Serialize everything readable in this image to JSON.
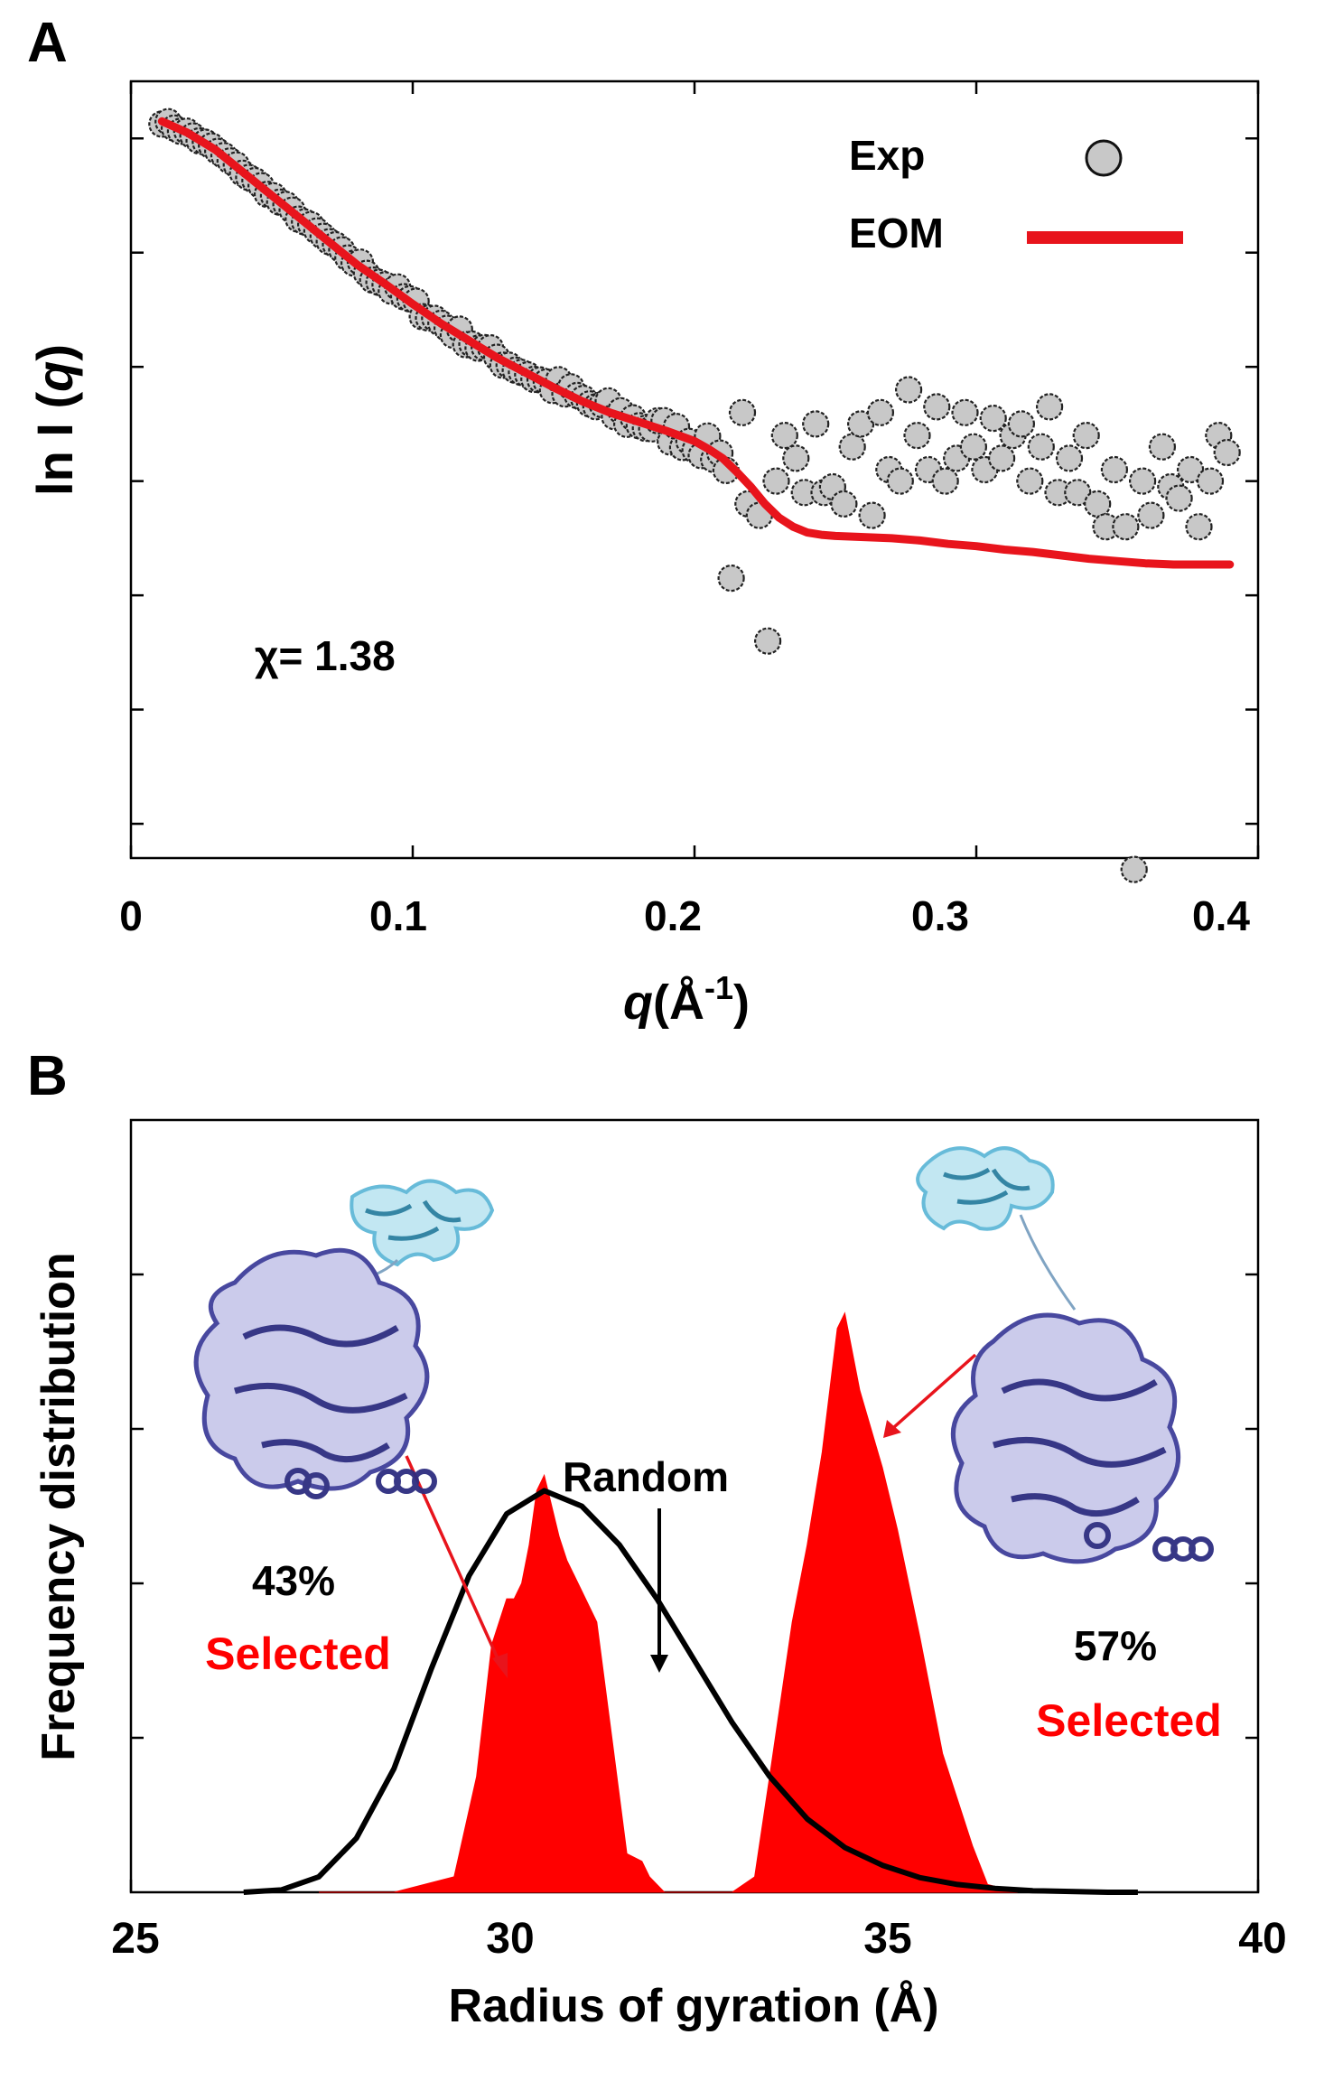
{
  "chart_data": [
    {
      "panel": "A",
      "type": "scatter",
      "xlabel_italic": "q",
      "xlabel_rest": "(Å",
      "xlabel_sup": "-1",
      "xlabel_close": ")",
      "ylabel_prefix": "ln I (",
      "ylabel_italic": "q",
      "ylabel_suffix": ")",
      "xlim": [
        0,
        0.4
      ],
      "ylim": [
        -6.3,
        0.5
      ],
      "xticks": [
        0,
        0.1,
        0.2,
        0.3,
        0.4
      ],
      "xtick_labels": [
        "0",
        "0.1",
        "0.2",
        "0.3",
        "0.4"
      ],
      "yticks": [
        -6,
        -5,
        -4,
        -3,
        -2,
        -1,
        0
      ],
      "annotation": "χ= 1.38",
      "legend": [
        {
          "label": "Exp",
          "marker": "circle",
          "color": "#c8c8c8"
        },
        {
          "label": "EOM",
          "marker": "line",
          "color": "#e8141c"
        }
      ],
      "series": [
        {
          "name": "Exp",
          "type": "scatter",
          "note": "noisy experimental points following the EOM curve, with increasing scatter at q > 0.2",
          "points": [
            [
              0.213,
              -3.85
            ],
            [
              0.217,
              -2.4
            ],
            [
              0.219,
              -3.2
            ],
            [
              0.223,
              -3.3
            ],
            [
              0.226,
              -4.4
            ],
            [
              0.229,
              -3.0
            ],
            [
              0.232,
              -2.6
            ],
            [
              0.236,
              -2.8
            ],
            [
              0.239,
              -3.1
            ],
            [
              0.243,
              -2.5
            ],
            [
              0.246,
              -3.1
            ],
            [
              0.249,
              -3.05
            ],
            [
              0.253,
              -3.2
            ],
            [
              0.256,
              -2.7
            ],
            [
              0.259,
              -2.5
            ],
            [
              0.263,
              -3.3
            ],
            [
              0.266,
              -2.4
            ],
            [
              0.269,
              -2.9
            ],
            [
              0.273,
              -3.0
            ],
            [
              0.276,
              -2.2
            ],
            [
              0.279,
              -2.6
            ],
            [
              0.283,
              -2.9
            ],
            [
              0.286,
              -2.35
            ],
            [
              0.289,
              -3.0
            ],
            [
              0.293,
              -2.8
            ],
            [
              0.296,
              -2.4
            ],
            [
              0.299,
              -2.7
            ],
            [
              0.303,
              -2.9
            ],
            [
              0.306,
              -2.45
            ],
            [
              0.309,
              -2.8
            ],
            [
              0.313,
              -2.6
            ],
            [
              0.316,
              -2.5
            ],
            [
              0.319,
              -3.0
            ],
            [
              0.323,
              -2.7
            ],
            [
              0.326,
              -2.35
            ],
            [
              0.329,
              -3.1
            ],
            [
              0.333,
              -2.8
            ],
            [
              0.336,
              -3.1
            ],
            [
              0.339,
              -2.6
            ],
            [
              0.343,
              -3.2
            ],
            [
              0.346,
              -3.4
            ],
            [
              0.349,
              -2.9
            ],
            [
              0.353,
              -3.4
            ],
            [
              0.356,
              -6.4
            ],
            [
              0.359,
              -3.0
            ],
            [
              0.362,
              -3.3
            ],
            [
              0.366,
              -2.7
            ],
            [
              0.369,
              -3.05
            ],
            [
              0.372,
              -3.15
            ],
            [
              0.376,
              -2.9
            ],
            [
              0.379,
              -3.4
            ],
            [
              0.383,
              -3.0
            ],
            [
              0.386,
              -2.6
            ],
            [
              0.389,
              -2.75
            ]
          ]
        },
        {
          "name": "EOM",
          "type": "line",
          "x": [
            0.011,
            0.02,
            0.03,
            0.04,
            0.05,
            0.06,
            0.07,
            0.08,
            0.09,
            0.1,
            0.11,
            0.12,
            0.13,
            0.14,
            0.15,
            0.16,
            0.17,
            0.18,
            0.19,
            0.2,
            0.205,
            0.21,
            0.215,
            0.22,
            0.225,
            0.23,
            0.235,
            0.24,
            0.245,
            0.25,
            0.26,
            0.27,
            0.28,
            0.29,
            0.3,
            0.31,
            0.32,
            0.33,
            0.34,
            0.35,
            0.36,
            0.37,
            0.38,
            0.39
          ],
          "y": [
            0.15,
            0.05,
            -0.1,
            -0.3,
            -0.5,
            -0.7,
            -0.9,
            -1.1,
            -1.27,
            -1.45,
            -1.62,
            -1.77,
            -1.92,
            -2.05,
            -2.18,
            -2.3,
            -2.4,
            -2.48,
            -2.56,
            -2.65,
            -2.72,
            -2.8,
            -2.92,
            -3.05,
            -3.2,
            -3.32,
            -3.4,
            -3.45,
            -3.47,
            -3.48,
            -3.49,
            -3.5,
            -3.52,
            -3.55,
            -3.57,
            -3.6,
            -3.62,
            -3.65,
            -3.68,
            -3.7,
            -3.72,
            -3.73,
            -3.73,
            -3.73
          ]
        }
      ]
    },
    {
      "panel": "B",
      "type": "area",
      "xlabel": "Radius of gyration (Å)",
      "ylabel": "Frequency distribution",
      "xlim": [
        25,
        40
      ],
      "ylim": [
        0,
        1.0
      ],
      "xticks": [
        25,
        30,
        35,
        40
      ],
      "xtick_labels": [
        "25",
        "30",
        "35",
        "40"
      ],
      "yticks": [
        0.2,
        0.4,
        0.6,
        0.8
      ],
      "annotations": {
        "random_label": "Random",
        "left_percent": "43%",
        "left_selected": "Selected",
        "right_percent": "57%",
        "right_selected": "Selected"
      },
      "series": [
        {
          "name": "Random",
          "type": "line",
          "color": "#000000",
          "x": [
            26.5,
            27,
            27.5,
            28,
            28.5,
            29,
            29.5,
            30,
            30.5,
            31,
            31.5,
            32,
            32.5,
            33,
            33.5,
            34,
            34.5,
            35,
            35.5,
            36,
            36.5,
            37,
            37.5,
            38,
            38.4
          ],
          "y": [
            0,
            0.003,
            0.02,
            0.07,
            0.16,
            0.29,
            0.41,
            0.49,
            0.52,
            0.5,
            0.45,
            0.38,
            0.3,
            0.22,
            0.15,
            0.095,
            0.058,
            0.035,
            0.019,
            0.01,
            0.005,
            0.002,
            0.001,
            0,
            0
          ]
        },
        {
          "name": "Selected",
          "type": "area",
          "color": "#ff0000",
          "x": [
            27.5,
            28.5,
            29.3,
            29.6,
            29.8,
            30.0,
            30.1,
            30.2,
            30.3,
            30.4,
            30.5,
            30.6,
            30.7,
            30.8,
            31.0,
            31.2,
            31.4,
            31.6,
            31.8,
            31.9,
            32.1,
            32.5,
            33.0,
            33.3,
            33.5,
            33.8,
            34.0,
            34.2,
            34.4,
            34.5,
            34.7,
            35.0,
            35.2,
            35.5,
            35.8,
            36.0,
            36.2,
            36.4,
            36.8
          ],
          "y": [
            0,
            0,
            0.02,
            0.15,
            0.32,
            0.38,
            0.38,
            0.4,
            0.45,
            0.52,
            0.54,
            0.5,
            0.46,
            0.43,
            0.39,
            0.35,
            0.2,
            0.05,
            0.04,
            0.02,
            0,
            0,
            0,
            0.02,
            0.15,
            0.35,
            0.45,
            0.57,
            0.73,
            0.75,
            0.65,
            0.55,
            0.47,
            0.33,
            0.18,
            0.12,
            0.06,
            0.01,
            0
          ]
        }
      ]
    }
  ],
  "panel_labels": [
    "A",
    "B"
  ]
}
